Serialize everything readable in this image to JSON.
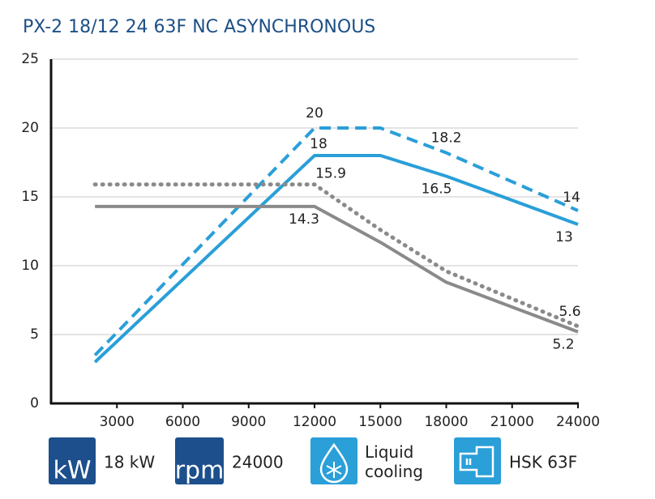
{
  "chart_data": {
    "type": "line",
    "title": "PX-2 18/12 24 63F NC ASYNCHRONOUS",
    "x": [
      2000,
      12000,
      15000,
      18000,
      24000
    ],
    "xlim": [
      0,
      24000
    ],
    "xticks": [
      3000,
      6000,
      9000,
      12000,
      15000,
      18000,
      21000,
      24000
    ],
    "ylim": [
      0,
      25
    ],
    "yticks": [
      0,
      5,
      10,
      15,
      20,
      25
    ],
    "grid": true,
    "series": [
      {
        "color": "#2a9fd8",
        "dash": "solid",
        "values": [
          3,
          18,
          18,
          16.5,
          13
        ],
        "value_labels": [
          null,
          "18",
          null,
          "16.5",
          "13"
        ]
      },
      {
        "color": "#2a9fd8",
        "dash": "dashed",
        "values": [
          3.5,
          20,
          20,
          18.2,
          14
        ],
        "value_labels": [
          null,
          "20",
          null,
          "18.2",
          "14"
        ]
      },
      {
        "color": "#8a8a8a",
        "dash": "solid",
        "values": [
          14.3,
          14.3,
          11.7,
          8.8,
          5.2
        ],
        "value_labels": [
          null,
          "14.3",
          null,
          null,
          "5.2"
        ]
      },
      {
        "color": "#8a8a8a",
        "dash": "dotted",
        "values": [
          15.9,
          15.9,
          12.6,
          9.6,
          5.6
        ],
        "value_labels": [
          null,
          "15.9",
          null,
          null,
          "5.6"
        ]
      }
    ]
  },
  "features": [
    {
      "icon": "kW",
      "label": "18 kW"
    },
    {
      "icon": "rpm",
      "label": "24000"
    },
    {
      "label": "Liquid cooling"
    },
    {
      "label": "HSK 63F"
    }
  ]
}
